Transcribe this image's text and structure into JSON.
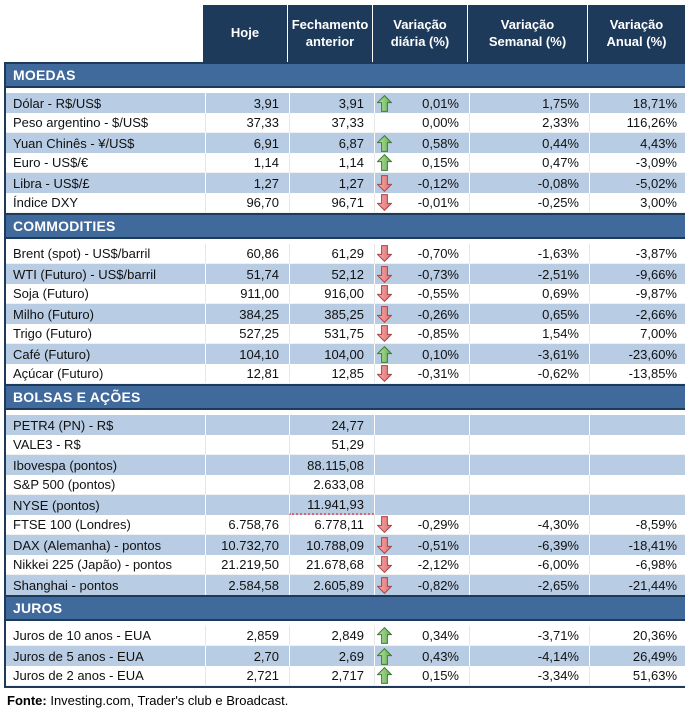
{
  "table": {
    "columns": [
      "Hoje",
      "Fechamento anterior",
      "Variação diária (%)",
      "Variação Semanal (%)",
      "Variação Anual (%)"
    ],
    "sections": [
      {
        "title": "MOEDAS",
        "first_row_shaded": true,
        "rows": [
          {
            "label": "Dólar - R$/US$",
            "today": "3,91",
            "prev": "3,91",
            "arrow": "up",
            "daily": "0,01%",
            "weekly": "1,75%",
            "annual": "18,71%"
          },
          {
            "label": "Peso argentino - $/US$",
            "today": "37,33",
            "prev": "37,33",
            "arrow": "",
            "daily": "0,00%",
            "weekly": "2,33%",
            "annual": "116,26%"
          },
          {
            "label": "Yuan Chinês - ¥/US$",
            "today": "6,91",
            "prev": "6,87",
            "arrow": "up",
            "daily": "0,58%",
            "weekly": "0,44%",
            "annual": "4,43%"
          },
          {
            "label": "Euro - US$/€",
            "today": "1,14",
            "prev": "1,14",
            "arrow": "up",
            "daily": "0,15%",
            "weekly": "0,47%",
            "annual": "-3,09%"
          },
          {
            "label": "Libra - US$/£",
            "today": "1,27",
            "prev": "1,27",
            "arrow": "down",
            "daily": "-0,12%",
            "weekly": "-0,08%",
            "annual": "-5,02%"
          },
          {
            "label": "Índice DXY",
            "today": "96,70",
            "prev": "96,71",
            "arrow": "down",
            "daily": "-0,01%",
            "weekly": "-0,25%",
            "annual": "3,00%"
          }
        ]
      },
      {
        "title": "COMMODITIES",
        "first_row_shaded": false,
        "rows": [
          {
            "label": "Brent (spot) - US$/barril",
            "today": "60,86",
            "prev": "61,29",
            "arrow": "down",
            "daily": "-0,70%",
            "weekly": "-1,63%",
            "annual": "-3,87%"
          },
          {
            "label": "WTI (Futuro) - US$/barril",
            "today": "51,74",
            "prev": "52,12",
            "arrow": "down",
            "daily": "-0,73%",
            "weekly": "-2,51%",
            "annual": "-9,66%"
          },
          {
            "label": "Soja (Futuro)",
            "today": "911,00",
            "prev": "916,00",
            "arrow": "down",
            "daily": "-0,55%",
            "weekly": "0,69%",
            "annual": "-9,87%"
          },
          {
            "label": "Milho (Futuro)",
            "today": "384,25",
            "prev": "385,25",
            "arrow": "down",
            "daily": "-0,26%",
            "weekly": "0,65%",
            "annual": "-2,66%"
          },
          {
            "label": "Trigo (Futuro)",
            "today": "527,25",
            "prev": "531,75",
            "arrow": "down",
            "daily": "-0,85%",
            "weekly": "1,54%",
            "annual": "7,00%"
          },
          {
            "label": "Café (Futuro)",
            "today": "104,10",
            "prev": "104,00",
            "arrow": "up",
            "daily": "0,10%",
            "weekly": "-3,61%",
            "annual": "-23,60%"
          },
          {
            "label": "Açúcar (Futuro)",
            "today": "12,81",
            "prev": "12,85",
            "arrow": "down",
            "daily": "-0,31%",
            "weekly": "-0,62%",
            "annual": "-13,85%"
          }
        ]
      },
      {
        "title": "BOLSAS E AÇÕES",
        "first_row_shaded": true,
        "rows": [
          {
            "label": "PETR4 (PN) - R$",
            "today": "",
            "prev": "24,77",
            "arrow": "",
            "daily": "",
            "weekly": "",
            "annual": ""
          },
          {
            "label": "VALE3 - R$",
            "today": "",
            "prev": "51,29",
            "arrow": "",
            "daily": "",
            "weekly": "",
            "annual": ""
          },
          {
            "label": "Ibovespa (pontos)",
            "today": "",
            "prev": "88.115,08",
            "arrow": "",
            "daily": "",
            "weekly": "",
            "annual": ""
          },
          {
            "label": "S&P 500 (pontos)",
            "today": "",
            "prev": "2.633,08",
            "arrow": "",
            "daily": "",
            "weekly": "",
            "annual": ""
          },
          {
            "label": "NYSE (pontos)",
            "today": "",
            "prev": "11.941,93",
            "arrow": "",
            "daily": "",
            "weekly": "",
            "annual": "",
            "marked": true
          },
          {
            "label": "FTSE 100 (Londres)",
            "today": "6.758,76",
            "prev": "6.778,11",
            "arrow": "down",
            "daily": "-0,29%",
            "weekly": "-4,30%",
            "annual": "-8,59%"
          },
          {
            "label": "DAX (Alemanha) - pontos",
            "today": "10.732,70",
            "prev": "10.788,09",
            "arrow": "down",
            "daily": "-0,51%",
            "weekly": "-6,39%",
            "annual": "-18,41%"
          },
          {
            "label": "Nikkei 225 (Japão) - pontos",
            "today": "21.219,50",
            "prev": "21.678,68",
            "arrow": "down",
            "daily": "-2,12%",
            "weekly": "-6,00%",
            "annual": "-6,98%"
          },
          {
            "label": "Shanghai - pontos",
            "today": "2.584,58",
            "prev": "2.605,89",
            "arrow": "down",
            "daily": "-0,82%",
            "weekly": "-2,65%",
            "annual": "-21,44%"
          }
        ]
      },
      {
        "title": "JUROS",
        "first_row_shaded": false,
        "rows": [
          {
            "label": "Juros de 10 anos - EUA",
            "today": "2,859",
            "prev": "2,849",
            "arrow": "up",
            "daily": "0,34%",
            "weekly": "-3,71%",
            "annual": "20,36%"
          },
          {
            "label": "Juros de 5 anos - EUA",
            "today": "2,70",
            "prev": "2,69",
            "arrow": "up",
            "daily": "0,43%",
            "weekly": "-4,14%",
            "annual": "26,49%"
          },
          {
            "label": "Juros de 2 anos - EUA",
            "today": "2,721",
            "prev": "2,717",
            "arrow": "up",
            "daily": "0,15%",
            "weekly": "-3,34%",
            "annual": "51,63%"
          }
        ]
      }
    ],
    "footer": {
      "label": "Fonte:",
      "text": " Investing.com, Trader's club e Broadcast."
    }
  },
  "colors": {
    "header_bg": "#1E3A5A",
    "section_bg": "#40699C",
    "row_shade": "#B8CCE4",
    "arrow_up": "#5FAE4E",
    "arrow_down": "#E07173",
    "mark_underline": "#E06666"
  }
}
